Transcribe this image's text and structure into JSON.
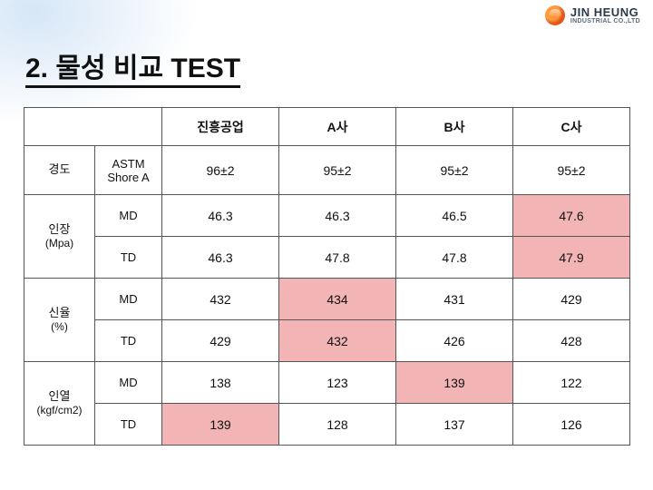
{
  "brand": {
    "name": "JIN HEUNG",
    "suffix": "INDUSTRIAL CO.,LTD"
  },
  "title": "2. 물성 비교 TEST",
  "table": {
    "headers": [
      "진흥공업",
      "A사",
      "B사",
      "C사"
    ],
    "groups": [
      {
        "label": "경도",
        "sublabel": "",
        "rows": [
          {
            "sub": "ASTM\nShore A",
            "cells": [
              "96±2",
              "95±2",
              "95±2",
              "95±2"
            ],
            "highlight": []
          }
        ]
      },
      {
        "label": "인장",
        "sublabel": "(Mpa)",
        "rows": [
          {
            "sub": "MD",
            "cells": [
              "46.3",
              "46.3",
              "46.5",
              "47.6"
            ],
            "highlight": [
              3
            ]
          },
          {
            "sub": "TD",
            "cells": [
              "46.3",
              "47.8",
              "47.8",
              "47.9"
            ],
            "highlight": [
              3
            ]
          }
        ]
      },
      {
        "label": "신율",
        "sublabel": "(%)",
        "rows": [
          {
            "sub": "MD",
            "cells": [
              "432",
              "434",
              "431",
              "429"
            ],
            "highlight": [
              1
            ]
          },
          {
            "sub": "TD",
            "cells": [
              "429",
              "432",
              "426",
              "428"
            ],
            "highlight": [
              1
            ]
          }
        ]
      },
      {
        "label": "인열",
        "sublabel": "(kgf/cm2)",
        "rows": [
          {
            "sub": "MD",
            "cells": [
              "138",
              "123",
              "139",
              "122"
            ],
            "highlight": [
              2
            ]
          },
          {
            "sub": "TD",
            "cells": [
              "139",
              "128",
              "137",
              "126"
            ],
            "highlight": [
              0
            ]
          }
        ]
      }
    ]
  },
  "colors": {
    "highlight": "#f2b4b4",
    "border": "#555555",
    "text": "#111111",
    "background": "#ffffff"
  }
}
